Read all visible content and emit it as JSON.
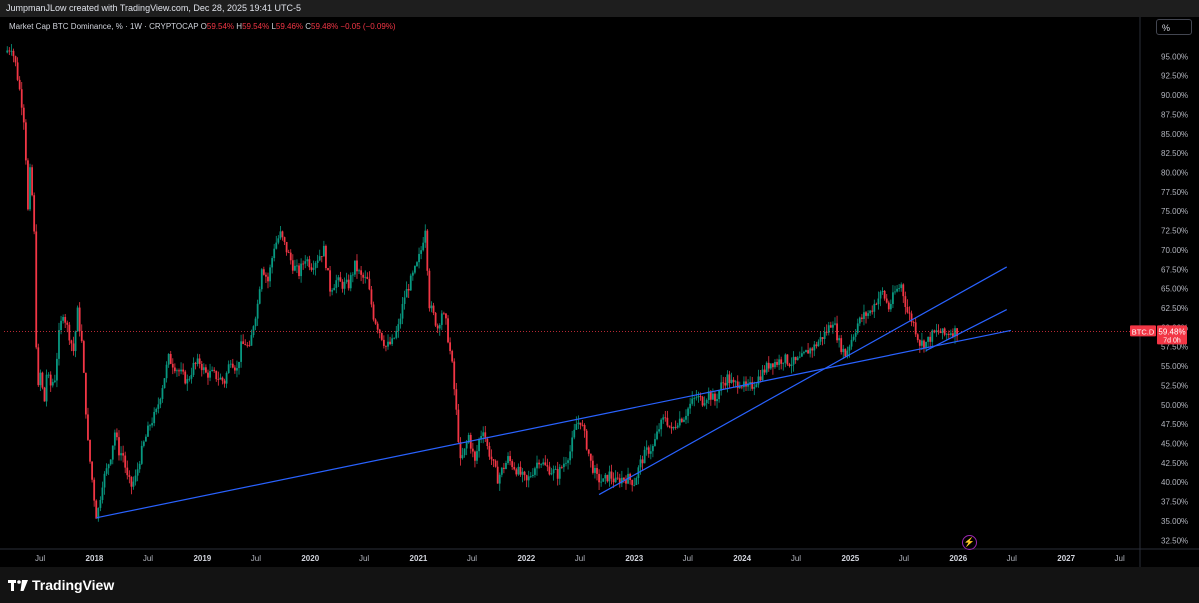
{
  "header": {
    "attribution": "JumpmanJLow created with TradingView.com, Dec 28, 2025 19:41 UTC-5"
  },
  "legend": {
    "symbol": "Market Cap BTC Dominance, %",
    "interval": "1W",
    "exchange": "CRYPTOCAP",
    "open_label": "O",
    "open": "59.54%",
    "high_label": "H",
    "high": "59.54%",
    "low_label": "L",
    "low": "59.46%",
    "close_label": "C",
    "close": "59.48%",
    "change": "−0.05 (−0.09%)"
  },
  "scale_button": {
    "label": "%"
  },
  "price_tag": {
    "ticker": "BTC.D",
    "value": "59.48%",
    "countdown": "7d 0h"
  },
  "footer": {
    "brand": "TradingView"
  },
  "colors": {
    "up": "#089981",
    "down": "#f23645",
    "trendline": "#2962ff",
    "background": "#000000"
  },
  "chart_data": {
    "type": "candlestick",
    "ylabel": "",
    "ylim": [
      31.5,
      97.5
    ],
    "yticks": [
      "32.50%",
      "35.00%",
      "37.50%",
      "40.00%",
      "42.50%",
      "45.00%",
      "47.50%",
      "50.00%",
      "52.50%",
      "55.00%",
      "57.50%",
      "60.00%",
      "62.50%",
      "65.00%",
      "67.50%",
      "70.00%",
      "72.50%",
      "75.00%",
      "77.50%",
      "80.00%",
      "82.50%",
      "85.00%",
      "87.50%",
      "90.00%",
      "92.50%",
      "95.00%"
    ],
    "x_start": "2017-03-01",
    "x_end": "2027-09-01",
    "xticks": [
      {
        "label": "Jul",
        "t": "2017-07-01"
      },
      {
        "label": "2018",
        "t": "2018-01-01"
      },
      {
        "label": "Jul",
        "t": "2018-07-01"
      },
      {
        "label": "2019",
        "t": "2019-01-01"
      },
      {
        "label": "Jul",
        "t": "2019-07-01"
      },
      {
        "label": "2020",
        "t": "2020-01-01"
      },
      {
        "label": "Jul",
        "t": "2020-07-01"
      },
      {
        "label": "2021",
        "t": "2021-01-01"
      },
      {
        "label": "Jul",
        "t": "2021-07-01"
      },
      {
        "label": "2022",
        "t": "2022-01-01"
      },
      {
        "label": "Jul",
        "t": "2022-07-01"
      },
      {
        "label": "2023",
        "t": "2023-01-01"
      },
      {
        "label": "Jul",
        "t": "2023-07-01"
      },
      {
        "label": "2024",
        "t": "2024-01-01"
      },
      {
        "label": "Jul",
        "t": "2024-07-01"
      },
      {
        "label": "2025",
        "t": "2025-01-01"
      },
      {
        "label": "Jul",
        "t": "2025-07-01"
      },
      {
        "label": "2026",
        "t": "2026-01-01"
      },
      {
        "label": "Jul",
        "t": "2026-07-01"
      },
      {
        "label": "2027",
        "t": "2027-01-01"
      },
      {
        "label": "Jul",
        "t": "2027-07-01"
      }
    ],
    "last_value": 59.48,
    "series_path": [
      [
        "2017-03-05",
        95.5
      ],
      [
        "2017-03-26",
        96.3
      ],
      [
        "2017-04-09",
        94.0
      ],
      [
        "2017-04-30",
        89.0
      ],
      [
        "2017-05-07",
        87.0
      ],
      [
        "2017-05-14",
        82.0
      ],
      [
        "2017-05-21",
        75.0
      ],
      [
        "2017-05-28",
        80.0
      ],
      [
        "2017-06-04",
        77.0
      ],
      [
        "2017-06-11",
        72.0
      ],
      [
        "2017-06-18",
        58.0
      ],
      [
        "2017-06-25",
        52.0
      ],
      [
        "2017-07-02",
        54.0
      ],
      [
        "2017-07-09",
        52.0
      ],
      [
        "2017-07-16",
        50.5
      ],
      [
        "2017-07-23",
        54.0
      ],
      [
        "2017-08-06",
        52.5
      ],
      [
        "2017-08-20",
        53.5
      ],
      [
        "2017-09-03",
        59.0
      ],
      [
        "2017-09-17",
        62.0
      ],
      [
        "2017-10-01",
        60.0
      ],
      [
        "2017-10-22",
        57.0
      ],
      [
        "2017-11-05",
        62.0
      ],
      [
        "2017-11-19",
        58.0
      ],
      [
        "2017-12-10",
        45.0
      ],
      [
        "2017-12-31",
        38.0
      ],
      [
        "2018-01-07",
        35.8
      ],
      [
        "2018-01-14",
        36.5
      ],
      [
        "2018-01-28",
        40.0
      ],
      [
        "2018-02-11",
        41.5
      ],
      [
        "2018-02-25",
        43.5
      ],
      [
        "2018-03-11",
        46.5
      ],
      [
        "2018-03-25",
        44.0
      ],
      [
        "2018-04-08",
        43.5
      ],
      [
        "2018-04-22",
        40.5
      ],
      [
        "2018-05-06",
        39.5
      ],
      [
        "2018-05-20",
        40.5
      ],
      [
        "2018-06-03",
        43.0
      ],
      [
        "2018-06-17",
        45.0
      ],
      [
        "2018-07-08",
        47.5
      ],
      [
        "2018-07-29",
        49.0
      ],
      [
        "2018-08-19",
        52.5
      ],
      [
        "2018-09-09",
        56.0
      ],
      [
        "2018-09-30",
        55.0
      ],
      [
        "2018-10-21",
        54.0
      ],
      [
        "2018-11-11",
        53.0
      ],
      [
        "2018-12-02",
        55.0
      ],
      [
        "2018-12-23",
        55.5
      ],
      [
        "2019-01-13",
        54.0
      ],
      [
        "2019-02-03",
        54.0
      ],
      [
        "2019-02-24",
        53.5
      ],
      [
        "2019-03-17",
        53.0
      ],
      [
        "2019-04-07",
        56.0
      ],
      [
        "2019-04-28",
        54.5
      ],
      [
        "2019-05-12",
        57.5
      ],
      [
        "2019-05-26",
        58.0
      ],
      [
        "2019-06-09",
        57.0
      ],
      [
        "2019-06-23",
        60.5
      ],
      [
        "2019-07-07",
        63.0
      ],
      [
        "2019-07-21",
        68.0
      ],
      [
        "2019-08-11",
        66.0
      ],
      [
        "2019-09-01",
        70.5
      ],
      [
        "2019-09-22",
        72.0
      ],
      [
        "2019-10-13",
        70.0
      ],
      [
        "2019-11-03",
        68.0
      ],
      [
        "2019-11-24",
        67.0
      ],
      [
        "2019-12-15",
        69.0
      ],
      [
        "2020-01-05",
        68.0
      ],
      [
        "2020-01-26",
        69.0
      ],
      [
        "2020-02-16",
        70.0
      ],
      [
        "2020-03-08",
        65.0
      ],
      [
        "2020-03-29",
        66.0
      ],
      [
        "2020-04-19",
        65.5
      ],
      [
        "2020-05-10",
        65.5
      ],
      [
        "2020-05-31",
        68.0
      ],
      [
        "2020-06-21",
        66.5
      ],
      [
        "2020-07-12",
        66.0
      ],
      [
        "2020-08-02",
        61.5
      ],
      [
        "2020-08-23",
        59.5
      ],
      [
        "2020-09-13",
        57.5
      ],
      [
        "2020-10-04",
        58.0
      ],
      [
        "2020-10-25",
        60.0
      ],
      [
        "2020-11-15",
        64.0
      ],
      [
        "2020-12-06",
        66.0
      ],
      [
        "2020-12-27",
        68.0
      ],
      [
        "2021-01-10",
        70.0
      ],
      [
        "2021-01-24",
        73.0
      ],
      [
        "2021-02-07",
        63.0
      ],
      [
        "2021-02-21",
        61.5
      ],
      [
        "2021-03-07",
        60.0
      ],
      [
        "2021-03-21",
        62.0
      ],
      [
        "2021-04-04",
        60.5
      ],
      [
        "2021-04-25",
        55.0
      ],
      [
        "2021-05-09",
        49.0
      ],
      [
        "2021-05-23",
        42.5
      ],
      [
        "2021-06-06",
        44.0
      ],
      [
        "2021-06-20",
        46.0
      ],
      [
        "2021-07-11",
        42.5
      ],
      [
        "2021-07-25",
        45.5
      ],
      [
        "2021-08-08",
        47.0
      ],
      [
        "2021-08-22",
        44.5
      ],
      [
        "2021-09-05",
        43.0
      ],
      [
        "2021-09-26",
        40.5
      ],
      [
        "2021-10-10",
        41.5
      ],
      [
        "2021-10-31",
        43.0
      ],
      [
        "2021-11-21",
        42.0
      ],
      [
        "2021-12-12",
        41.0
      ],
      [
        "2022-01-02",
        40.0
      ],
      [
        "2022-01-23",
        41.5
      ],
      [
        "2022-02-13",
        43.0
      ],
      [
        "2022-03-06",
        42.0
      ],
      [
        "2022-03-27",
        41.5
      ],
      [
        "2022-04-17",
        41.0
      ],
      [
        "2022-05-08",
        42.5
      ],
      [
        "2022-05-29",
        44.0
      ],
      [
        "2022-06-19",
        47.5
      ],
      [
        "2022-07-03",
        48.0
      ],
      [
        "2022-07-17",
        46.0
      ],
      [
        "2022-08-07",
        42.5
      ],
      [
        "2022-08-28",
        40.5
      ],
      [
        "2022-09-18",
        40.0
      ],
      [
        "2022-10-09",
        41.0
      ],
      [
        "2022-10-30",
        40.0
      ],
      [
        "2022-11-20",
        40.5
      ],
      [
        "2022-12-11",
        40.5
      ],
      [
        "2023-01-01",
        40.0
      ],
      [
        "2023-01-22",
        42.5
      ],
      [
        "2023-02-12",
        44.0
      ],
      [
        "2023-03-05",
        44.5
      ],
      [
        "2023-03-26",
        47.0
      ],
      [
        "2023-04-16",
        48.5
      ],
      [
        "2023-05-07",
        46.5
      ],
      [
        "2023-05-28",
        48.0
      ],
      [
        "2023-06-18",
        48.5
      ],
      [
        "2023-07-09",
        50.0
      ],
      [
        "2023-07-30",
        51.0
      ],
      [
        "2023-08-20",
        50.5
      ],
      [
        "2023-09-10",
        51.5
      ],
      [
        "2023-10-01",
        50.5
      ],
      [
        "2023-10-22",
        52.5
      ],
      [
        "2023-11-12",
        53.5
      ],
      [
        "2023-12-03",
        52.5
      ],
      [
        "2023-12-24",
        53.0
      ],
      [
        "2024-01-14",
        52.0
      ],
      [
        "2024-02-04",
        52.5
      ],
      [
        "2024-02-25",
        53.5
      ],
      [
        "2024-03-17",
        54.5
      ],
      [
        "2024-04-07",
        55.5
      ],
      [
        "2024-04-28",
        55.5
      ],
      [
        "2024-05-19",
        56.0
      ],
      [
        "2024-06-09",
        55.5
      ],
      [
        "2024-06-30",
        55.5
      ],
      [
        "2024-07-21",
        56.0
      ],
      [
        "2024-08-11",
        57.0
      ],
      [
        "2024-09-01",
        57.5
      ],
      [
        "2024-09-22",
        58.5
      ],
      [
        "2024-10-13",
        59.5
      ],
      [
        "2024-11-03",
        61.0
      ],
      [
        "2024-11-24",
        58.0
      ],
      [
        "2024-12-15",
        56.5
      ],
      [
        "2025-01-05",
        58.5
      ],
      [
        "2025-01-26",
        60.5
      ],
      [
        "2025-02-16",
        61.5
      ],
      [
        "2025-03-09",
        62.0
      ],
      [
        "2025-03-30",
        63.5
      ],
      [
        "2025-04-20",
        64.5
      ],
      [
        "2025-05-11",
        62.5
      ],
      [
        "2025-06-01",
        64.5
      ],
      [
        "2025-06-22",
        65.5
      ],
      [
        "2025-07-13",
        62.0
      ],
      [
        "2025-08-03",
        60.5
      ],
      [
        "2025-08-24",
        58.0
      ],
      [
        "2025-09-14",
        58.0
      ],
      [
        "2025-10-05",
        59.0
      ],
      [
        "2025-10-26",
        59.5
      ],
      [
        "2025-11-16",
        59.0
      ],
      [
        "2025-12-07",
        59.5
      ],
      [
        "2025-12-28",
        59.48
      ]
    ],
    "trendlines": [
      {
        "p1": [
          "2018-01-07",
          35.4
        ],
        "p2": [
          "2026-06-28",
          59.6
        ]
      },
      {
        "p1": [
          "2022-09-04",
          38.4
        ],
        "p2": [
          "2026-06-14",
          67.8
        ]
      },
      {
        "p1": [
          "2025-09-14",
          57.0
        ],
        "p2": [
          "2026-06-14",
          62.3
        ]
      }
    ]
  }
}
